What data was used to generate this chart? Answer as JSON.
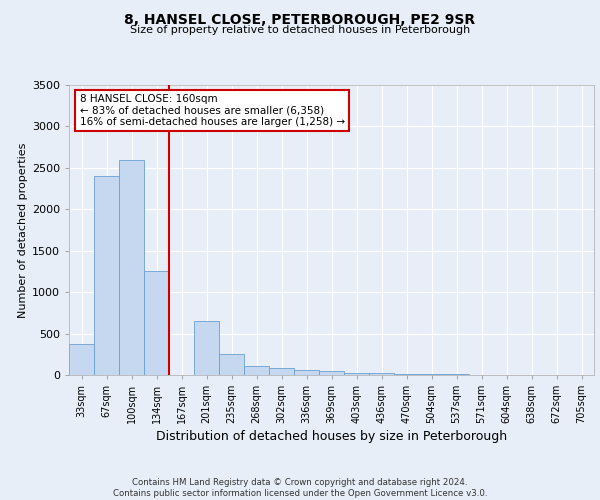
{
  "title": "8, HANSEL CLOSE, PETERBOROUGH, PE2 9SR",
  "subtitle": "Size of property relative to detached houses in Peterborough",
  "xlabel": "Distribution of detached houses by size in Peterborough",
  "ylabel": "Number of detached properties",
  "categories": [
    "33sqm",
    "67sqm",
    "100sqm",
    "134sqm",
    "167sqm",
    "201sqm",
    "235sqm",
    "268sqm",
    "302sqm",
    "336sqm",
    "369sqm",
    "403sqm",
    "436sqm",
    "470sqm",
    "504sqm",
    "537sqm",
    "571sqm",
    "604sqm",
    "638sqm",
    "672sqm",
    "705sqm"
  ],
  "values": [
    380,
    2400,
    2600,
    1250,
    0,
    650,
    250,
    110,
    80,
    60,
    50,
    30,
    20,
    15,
    10,
    8,
    5,
    4,
    3,
    2,
    1
  ],
  "bar_color": "#c5d8f0",
  "bar_edge_color": "#6aa0d4",
  "vline_x": 3.5,
  "vline_color": "#cc0000",
  "ylim": [
    0,
    3500
  ],
  "yticks": [
    0,
    500,
    1000,
    1500,
    2000,
    2500,
    3000,
    3500
  ],
  "annotation_text": "8 HANSEL CLOSE: 160sqm\n← 83% of detached houses are smaller (6,358)\n16% of semi-detached houses are larger (1,258) →",
  "annotation_box_color": "#ffffff",
  "annotation_box_edge": "#cc0000",
  "footer_line1": "Contains HM Land Registry data © Crown copyright and database right 2024.",
  "footer_line2": "Contains public sector information licensed under the Open Government Licence v3.0.",
  "background_color": "#e8eef7",
  "plot_background": "#e8eef7",
  "grid_color": "#ffffff"
}
